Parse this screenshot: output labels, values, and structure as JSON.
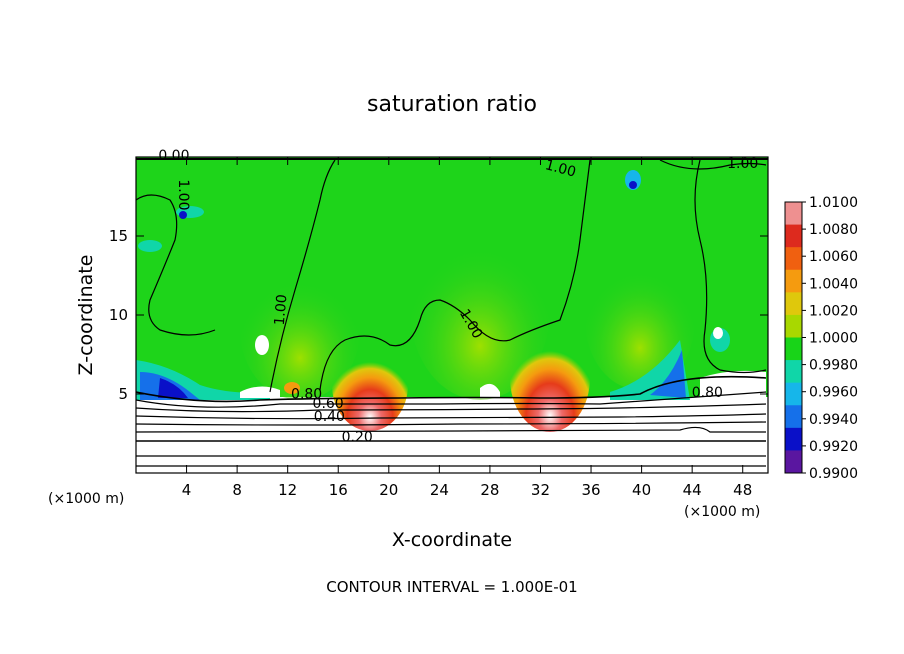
{
  "chart_data": {
    "type": "heatmap",
    "title": "saturation ratio",
    "xlabel": "X-coordinate",
    "ylabel": "Z-coordinate",
    "xlim": [
      0,
      50
    ],
    "ylim": [
      0,
      20
    ],
    "x_ticks": [
      4,
      8,
      12,
      16,
      20,
      24,
      28,
      32,
      36,
      40,
      44,
      48
    ],
    "y_ticks": [
      5,
      10,
      15
    ],
    "x_multiplier_left": "(×1000 m)",
    "x_multiplier_right": "(×1000 m)",
    "footer": "CONTOUR INTERVAL = 1.000E-01",
    "colorbar": {
      "min": 0.99,
      "max": 1.01,
      "tick_labels": [
        "1.0100",
        "1.0080",
        "1.0060",
        "1.0040",
        "1.0020",
        "1.0000",
        "0.9980",
        "0.9960",
        "0.9940",
        "0.9920",
        "0.9900"
      ],
      "colors": [
        "#ee9090",
        "#dd2a1e",
        "#f06010",
        "#f59b0f",
        "#dfc80c",
        "#a8d800",
        "#18d418",
        "#10d6a8",
        "#16b6ea",
        "#1570ea",
        "#0a10c8",
        "#5a16a0"
      ]
    },
    "contour_labels": [
      {
        "text": "0.00",
        "x": 3.0,
        "y": 19.8
      },
      {
        "text": "1.00",
        "x": 3.4,
        "y": 17.6,
        "rotate": 90
      },
      {
        "text": "1.00",
        "x": 11.8,
        "y": 10.3,
        "rotate": -85
      },
      {
        "text": "1.00",
        "x": 26.2,
        "y": 9.3,
        "rotate": 60
      },
      {
        "text": "1.00",
        "x": 33.5,
        "y": 19.0,
        "rotate": 15
      },
      {
        "text": "1.00",
        "x": 48.0,
        "y": 19.3
      },
      {
        "text": "0.80",
        "x": 13.5,
        "y": 4.7
      },
      {
        "text": "0.60",
        "x": 15.2,
        "y": 4.1
      },
      {
        "text": "0.40",
        "x": 15.3,
        "y": 3.3
      },
      {
        "text": "0.20",
        "x": 17.5,
        "y": 2.0
      },
      {
        "text": "0.80",
        "x": 45.2,
        "y": 4.8
      }
    ]
  }
}
